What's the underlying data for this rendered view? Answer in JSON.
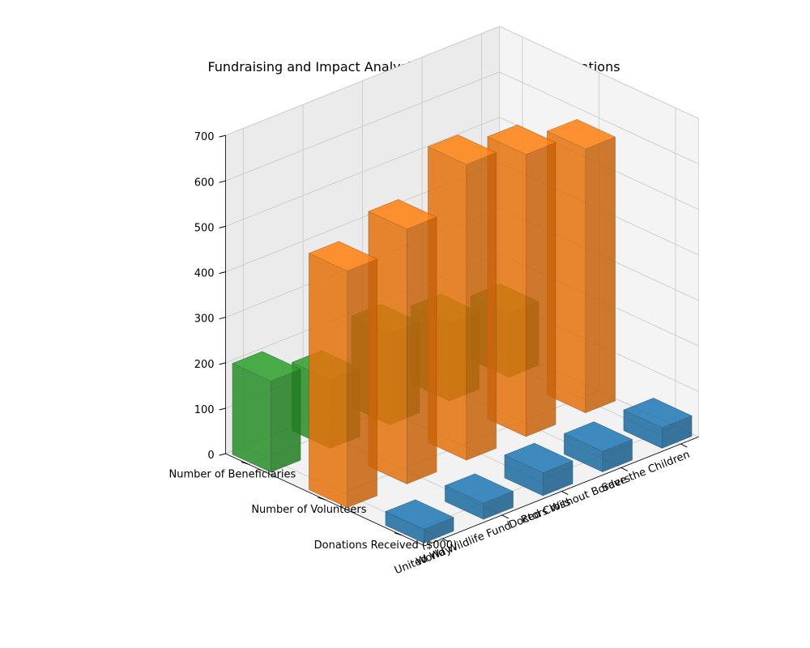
{
  "chart_data": {
    "type": "bar3d",
    "title": "Fundraising and Impact Analysis of Key Nonprofit Organizations",
    "organizations": [
      "United Way",
      "World Wildlife Fund",
      "Red Cross",
      "Doctors Without Borders",
      "Save the Children"
    ],
    "metrics": [
      "Donations Received ($000)",
      "Number of Volunteers",
      "Number of Beneficiaries"
    ],
    "values": [
      [
        30,
        520,
        200
      ],
      [
        35,
        560,
        150
      ],
      [
        50,
        650,
        200
      ],
      [
        45,
        620,
        170
      ],
      [
        45,
        580,
        140
      ]
    ],
    "metric_colors": [
      "#1f77b4",
      "#ff7f0e",
      "#2ca02c"
    ],
    "zlim": [
      0,
      700
    ],
    "zticks": [
      0,
      100,
      200,
      300,
      400,
      500,
      600,
      700
    ],
    "grid": true
  }
}
